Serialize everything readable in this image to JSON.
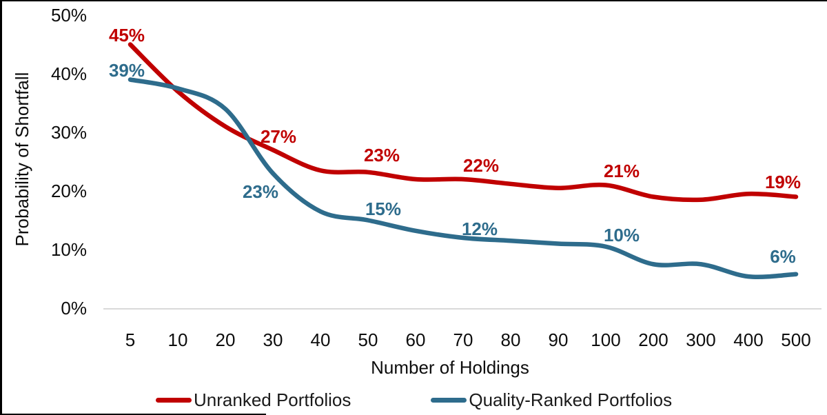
{
  "chart_data": {
    "type": "line",
    "title": "",
    "xlabel": "Number of Holdings",
    "ylabel": "Probability of Shortfall",
    "x_tick_labels": [
      "5",
      "10",
      "20",
      "30",
      "40",
      "50",
      "60",
      "70",
      "80",
      "90",
      "100",
      "200",
      "300",
      "400",
      "500"
    ],
    "y_tick_labels": [
      "0%",
      "10%",
      "20%",
      "30%",
      "40%",
      "50%"
    ],
    "ylim": [
      0,
      50
    ],
    "grid": false,
    "legend_position": "bottom",
    "series": [
      {
        "name": "Unranked Portfolios",
        "color": "#C00000",
        "values": [
          45,
          37,
          31,
          27,
          23.5,
          23.2,
          22,
          22,
          21.2,
          20.5,
          21,
          19,
          18.5,
          19.5,
          19
        ],
        "point_labels": [
          "45%",
          "",
          "",
          "27%",
          "",
          "23%",
          "",
          "22%",
          "",
          "",
          "21%",
          "",
          "",
          "",
          "19%"
        ]
      },
      {
        "name": "Quality-Ranked Portfolios",
        "color": "#2E6C8C",
        "values": [
          39,
          37.5,
          34,
          23,
          16.5,
          15,
          13.2,
          12,
          11.5,
          11,
          10.5,
          7.5,
          7.5,
          5.4,
          5.8
        ],
        "point_labels": [
          "39%",
          "",
          "",
          "23%",
          "",
          "15%",
          "",
          "12%",
          "",
          "",
          "10%",
          "",
          "",
          "",
          "6%"
        ]
      }
    ]
  },
  "colors": {
    "axis_line": "#D9D9D9",
    "tick_text": "#0d0d0d",
    "frame": "#000000",
    "background": "#ffffff"
  }
}
